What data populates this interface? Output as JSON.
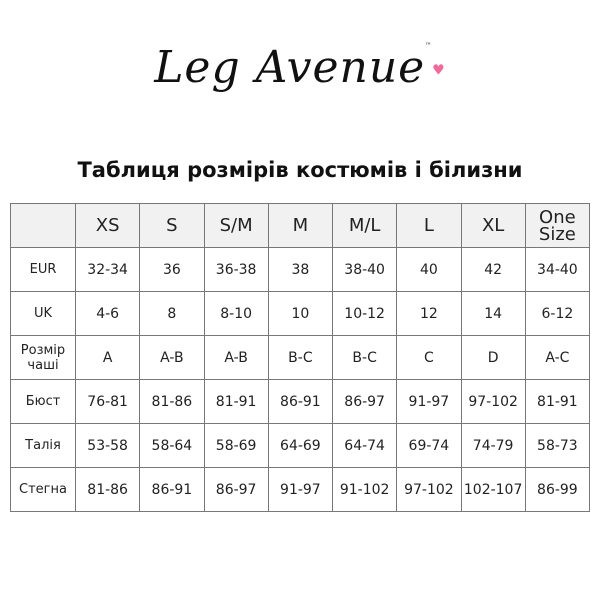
{
  "logo": {
    "text": "Leg Avenue",
    "trademark": "™"
  },
  "title": "Таблиця розмірів костюмів і білизни",
  "table": {
    "headers": [
      "",
      "XS",
      "S",
      "S/M",
      "M",
      "M/L",
      "L",
      "XL",
      "One Size"
    ],
    "rows": [
      {
        "label": "EUR",
        "values": [
          "32-34",
          "36",
          "36-38",
          "38",
          "38-40",
          "40",
          "42",
          "34-40"
        ]
      },
      {
        "label": "UK",
        "values": [
          "4-6",
          "8",
          "8-10",
          "10",
          "10-12",
          "12",
          "14",
          "6-12"
        ]
      },
      {
        "label": "Розмір чаші",
        "values": [
          "A",
          "A-B",
          "A-B",
          "B-C",
          "B-C",
          "C",
          "D",
          "A-C"
        ]
      },
      {
        "label": "Бюст",
        "values": [
          "76-81",
          "81-86",
          "81-91",
          "86-91",
          "86-97",
          "91-97",
          "97-102",
          "81-91"
        ]
      },
      {
        "label": "Талія",
        "values": [
          "53-58",
          "58-64",
          "58-69",
          "64-69",
          "64-74",
          "69-74",
          "74-79",
          "58-73"
        ]
      },
      {
        "label": "Стегна",
        "values": [
          "81-86",
          "86-91",
          "86-97",
          "91-97",
          "91-102",
          "97-102",
          "102-107",
          "86-99"
        ]
      }
    ]
  },
  "colors": {
    "header_bg": "#f1f1f1",
    "border": "#777777",
    "heart": "#f06a9a"
  }
}
